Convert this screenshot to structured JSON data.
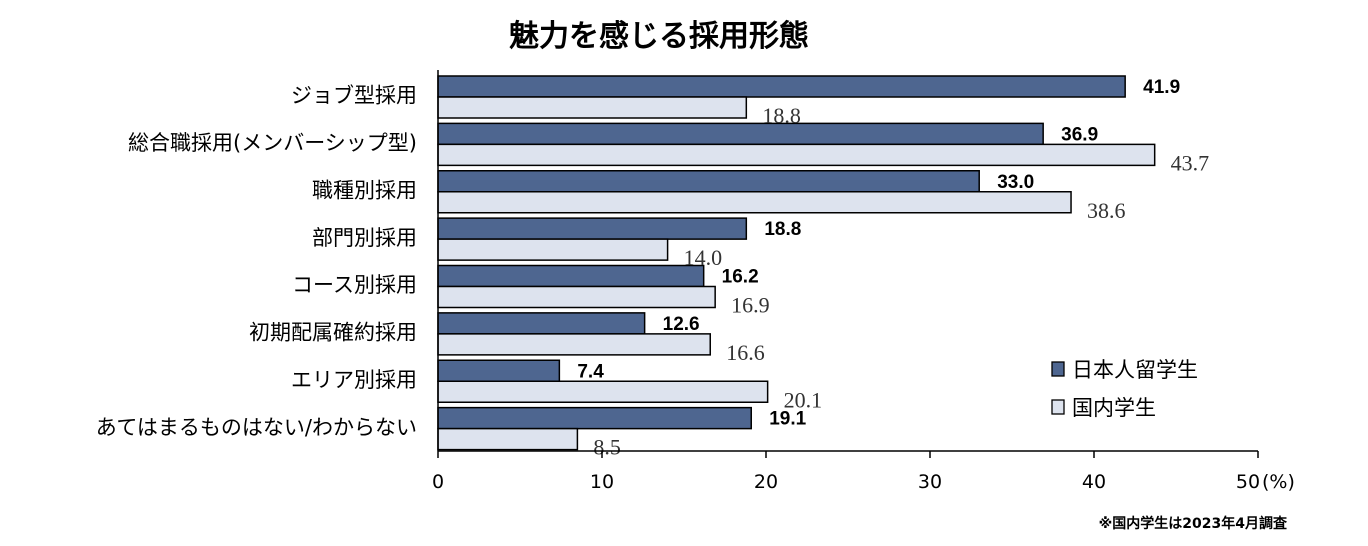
{
  "chart_data": {
    "type": "bar",
    "orientation": "horizontal",
    "title": "魅力を感じる採用形態",
    "categories": [
      "ジョブ型採用",
      "総合職採用(メンバーシップ型)",
      "職種別採用",
      "部門別採用",
      "コース別採用",
      "初期配属確約採用",
      "エリア別採用",
      "あてはまるものはない/わからない"
    ],
    "series": [
      {
        "name": "日本人留学生",
        "color": "#4e6690",
        "values": [
          41.9,
          36.9,
          33.0,
          18.8,
          16.2,
          12.6,
          7.4,
          19.1
        ],
        "labels": [
          "41.9",
          "36.9",
          "33.0",
          "18.8",
          "16.2",
          "12.6",
          "7.4",
          "19.1"
        ]
      },
      {
        "name": "国内学生",
        "color": "#dde3ee",
        "values": [
          18.8,
          43.7,
          38.6,
          14.0,
          16.9,
          16.6,
          20.1,
          8.5
        ],
        "labels": [
          "18.8",
          "43.7",
          "38.6",
          "14.0",
          "16.9",
          "16.6",
          "20.1",
          "8.5"
        ]
      }
    ],
    "xlim": [
      0,
      50
    ],
    "xticks": [
      "0",
      "10",
      "20",
      "30",
      "40",
      "50"
    ],
    "xunit": "(%)",
    "legend": "bottom-right",
    "note": "※国内学生は2023年4月調査"
  }
}
